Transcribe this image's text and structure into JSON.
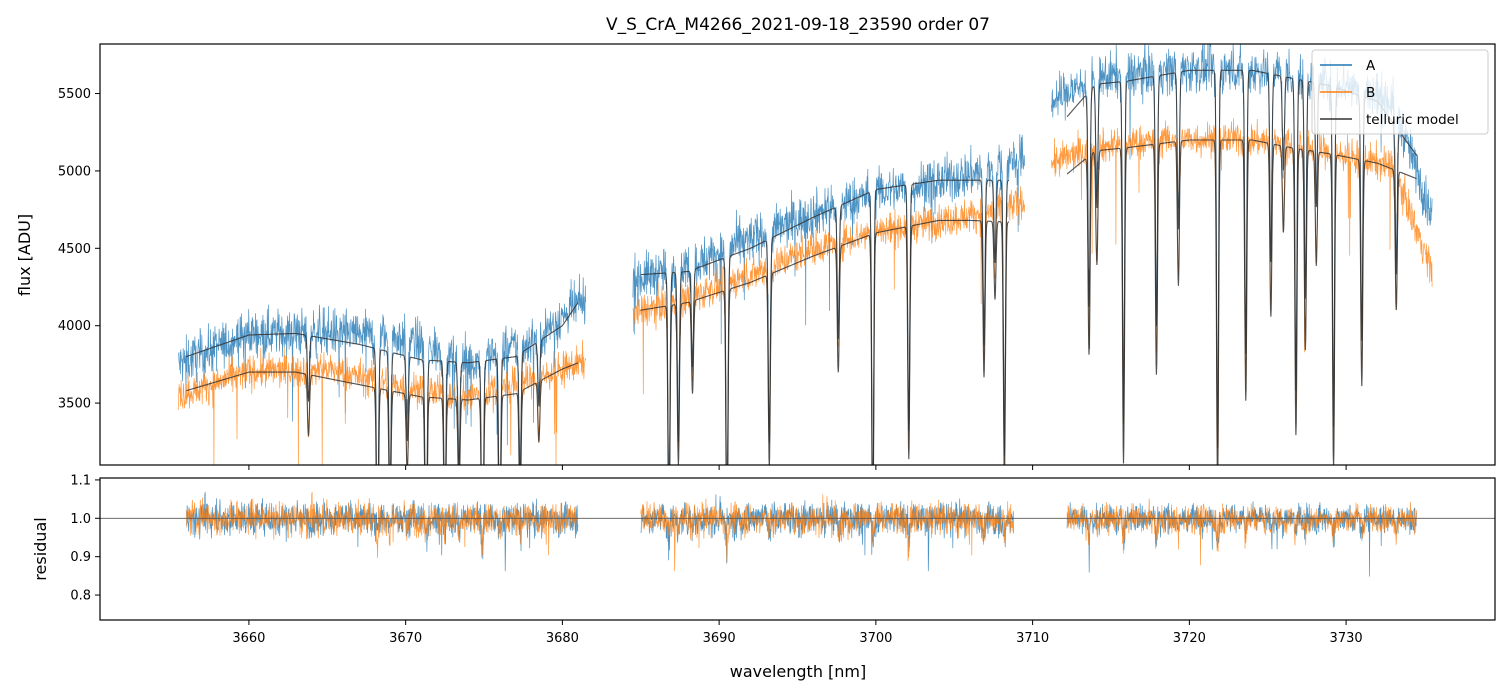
{
  "chart_data": {
    "type": "line",
    "title": "V_S_CrA_M4266_2021-09-18_23590  order 07",
    "xlabel": "wavelength [nm]",
    "xlim": [
      3650.5,
      3739.5
    ],
    "xticks": [
      3660,
      3670,
      3680,
      3690,
      3700,
      3710,
      3720,
      3730
    ],
    "top_panel": {
      "ylabel": "flux [ADU]",
      "ylim": [
        3100,
        5820
      ],
      "yticks": [
        3500,
        4000,
        4500,
        5000,
        5500
      ],
      "legend_position": "top-right",
      "series": [
        {
          "name": "A",
          "color": "#1f77b4"
        },
        {
          "name": "B",
          "color": "#ff7f0e"
        },
        {
          "name": "telluric model",
          "color": "#333333"
        }
      ],
      "segments": [
        {
          "range": [
            3655.5,
            3681.5
          ],
          "A_level": [
            [
              3655.5,
              3750
            ],
            [
              3660,
              3950
            ],
            [
              3665,
              3960
            ],
            [
              3670,
              3920
            ],
            [
              3674,
              3760
            ],
            [
              3678,
              3900
            ],
            [
              3681.5,
              4170
            ]
          ],
          "B_level": [
            [
              3655.5,
              3550
            ],
            [
              3660,
              3700
            ],
            [
              3665,
              3720
            ],
            [
              3670,
              3600
            ],
            [
              3674,
              3540
            ],
            [
              3678,
              3650
            ],
            [
              3681.5,
              3770
            ]
          ]
        },
        {
          "range": [
            3684.5,
            3709.5
          ],
          "A_level": [
            [
              3684.5,
              4300
            ],
            [
              3688,
              4380
            ],
            [
              3692,
              4560
            ],
            [
              3696,
              4720
            ],
            [
              3700,
              4860
            ],
            [
              3705,
              4950
            ],
            [
              3709.5,
              5080
            ]
          ],
          "B_level": [
            [
              3684.5,
              4080
            ],
            [
              3688,
              4180
            ],
            [
              3692,
              4330
            ],
            [
              3696,
              4500
            ],
            [
              3700,
              4610
            ],
            [
              3705,
              4690
            ],
            [
              3709.5,
              4800
            ]
          ]
        },
        {
          "range": [
            3711.2,
            3735.5
          ],
          "A_level": [
            [
              3711.2,
              5450
            ],
            [
              3714,
              5600
            ],
            [
              3718,
              5650
            ],
            [
              3722,
              5660
            ],
            [
              3726,
              5640
            ],
            [
              3730,
              5560
            ],
            [
              3733,
              5450
            ],
            [
              3735.5,
              4700
            ]
          ],
          "B_level": [
            [
              3711.2,
              5050
            ],
            [
              3714,
              5150
            ],
            [
              3718,
              5200
            ],
            [
              3722,
              5210
            ],
            [
              3726,
              5190
            ],
            [
              3730,
              5100
            ],
            [
              3733,
              5030
            ],
            [
              3735.5,
              4350
            ]
          ]
        }
      ],
      "telluric_model": {
        "A_segments": [
          [
            [
              3656,
              3800
            ],
            [
              3660,
              3940
            ],
            [
              3663,
              3950
            ],
            [
              3667,
              3880
            ],
            [
              3671,
              3780
            ],
            [
              3674,
              3760
            ],
            [
              3677,
              3800
            ],
            [
              3680,
              4000
            ],
            [
              3681,
              4150
            ]
          ],
          [
            [
              3685,
              4330
            ],
            [
              3688,
              4350
            ],
            [
              3692,
              4500
            ],
            [
              3696,
              4700
            ],
            [
              3700,
              4880
            ],
            [
              3704,
              4940
            ],
            [
              3706,
              4940
            ],
            [
              3708.5,
              4940
            ]
          ],
          [
            [
              3712.2,
              5350
            ],
            [
              3714,
              5560
            ],
            [
              3716,
              5580
            ],
            [
              3720,
              5650
            ],
            [
              3724,
              5650
            ],
            [
              3726.5,
              5600
            ],
            [
              3729,
              5550
            ],
            [
              3732,
              5450
            ],
            [
              3734.5,
              5100
            ]
          ]
        ],
        "B_segments": [
          [
            [
              3656,
              3580
            ],
            [
              3660,
              3700
            ],
            [
              3663,
              3700
            ],
            [
              3667,
              3620
            ],
            [
              3671,
              3540
            ],
            [
              3674,
              3520
            ],
            [
              3677,
              3560
            ],
            [
              3680,
              3720
            ],
            [
              3681,
              3760
            ]
          ],
          [
            [
              3685,
              4100
            ],
            [
              3688,
              4150
            ],
            [
              3692,
              4280
            ],
            [
              3696,
              4450
            ],
            [
              3700,
              4600
            ],
            [
              3704,
              4680
            ],
            [
              3706,
              4680
            ],
            [
              3708.5,
              4670
            ]
          ],
          [
            [
              3712.2,
              4980
            ],
            [
              3714,
              5130
            ],
            [
              3716,
              5150
            ],
            [
              3720,
              5200
            ],
            [
              3724,
              5200
            ],
            [
              3726.5,
              5150
            ],
            [
              3729,
              5110
            ],
            [
              3732,
              5050
            ],
            [
              3734.5,
              4950
            ]
          ]
        ],
        "absorption_lines": [
          3663.8,
          3668.2,
          3669.0,
          3670.1,
          3671.3,
          3672.5,
          3673.4,
          3674.9,
          3676.0,
          3677.3,
          3678.5,
          3686.8,
          3687.4,
          3688.3,
          3690.5,
          3693.2,
          3697.6,
          3699.8,
          3702.1,
          3706.9,
          3707.6,
          3708.2,
          3713.6,
          3714.1,
          3715.8,
          3717.9,
          3719.3,
          3721.8,
          3723.6,
          3725.2,
          3726.0,
          3726.8,
          3727.4,
          3728.1,
          3729.2,
          3731.0,
          3733.2
        ]
      }
    },
    "bottom_panel": {
      "ylabel": "residual",
      "ylim": [
        0.735,
        1.105
      ],
      "yticks": [
        0.8,
        0.9,
        1.0,
        1.1
      ],
      "reference_line": 1.0,
      "segments": [
        [
          3656,
          3681
        ],
        [
          3685,
          3708.8
        ],
        [
          3712.2,
          3734.5
        ]
      ]
    },
    "tick_labels": {
      "x": [
        "3660",
        "3670",
        "3680",
        "3690",
        "3700",
        "3710",
        "3720",
        "3730"
      ],
      "top_y": [
        "3500",
        "4000",
        "4500",
        "5000",
        "5500"
      ],
      "bottom_y": [
        "0.8",
        "0.9",
        "1.0",
        "1.1"
      ]
    }
  }
}
